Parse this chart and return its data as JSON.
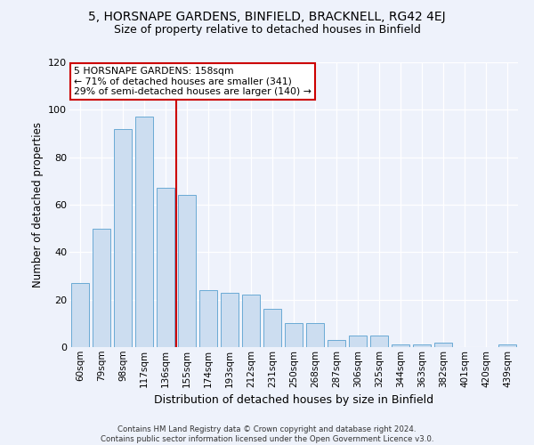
{
  "title": "5, HORSNAPE GARDENS, BINFIELD, BRACKNELL, RG42 4EJ",
  "subtitle": "Size of property relative to detached houses in Binfield",
  "xlabel": "Distribution of detached houses by size in Binfield",
  "ylabel": "Number of detached properties",
  "categories": [
    "60sqm",
    "79sqm",
    "98sqm",
    "117sqm",
    "136sqm",
    "155sqm",
    "174sqm",
    "193sqm",
    "212sqm",
    "231sqm",
    "250sqm",
    "268sqm",
    "287sqm",
    "306sqm",
    "325sqm",
    "344sqm",
    "363sqm",
    "382sqm",
    "401sqm",
    "420sqm",
    "439sqm"
  ],
  "bar_heights": [
    27,
    50,
    92,
    97,
    67,
    64,
    24,
    23,
    22,
    16,
    10,
    10,
    3,
    5,
    5,
    1,
    1,
    2,
    0,
    0,
    1
  ],
  "bar_color": "#ccddf0",
  "bar_edge_color": "#6aaad4",
  "annotation_line1": "5 HORSNAPE GARDENS: 158sqm",
  "annotation_line2": "← 71% of detached houses are smaller (341)",
  "annotation_line3": "29% of semi-detached houses are larger (140) →",
  "vline_color": "#cc0000",
  "annotation_box_edgecolor": "#cc0000",
  "footer1": "Contains HM Land Registry data © Crown copyright and database right 2024.",
  "footer2": "Contains public sector information licensed under the Open Government Licence v3.0.",
  "ylim": [
    0,
    120
  ],
  "yticks": [
    0,
    20,
    40,
    60,
    80,
    100,
    120
  ],
  "background_color": "#eef2fb",
  "plot_bg_color": "#eef2fb",
  "vline_bar_index": 4.5
}
